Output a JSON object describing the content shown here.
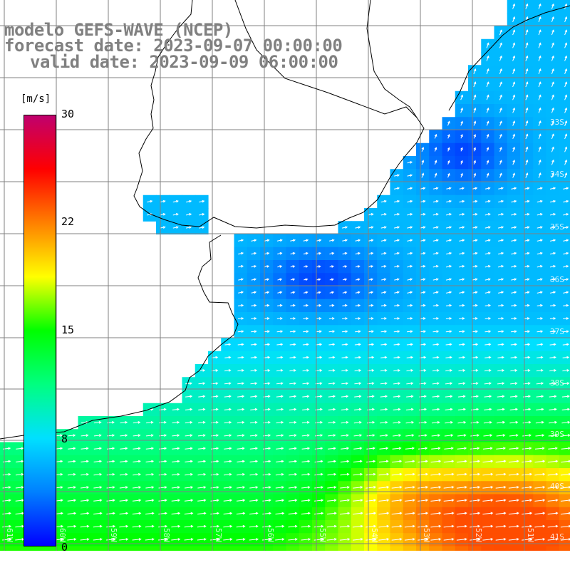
{
  "title": {
    "line1": "modelo GEFS-WAVE (NCEP)",
    "line2": "forecast date: 2023-09-07 00:00:00",
    "line3": "valid date: 2023-09-09 06:00:00"
  },
  "legend": {
    "unit": "[m/s]",
    "ticks": [
      {
        "label": "30",
        "value": 30
      },
      {
        "label": "22",
        "value": 22
      },
      {
        "label": "15",
        "value": 15
      },
      {
        "label": "8",
        "value": 8
      },
      {
        "label": "0",
        "value": 0
      }
    ],
    "colors": [
      "#0000ff",
      "#0080ff",
      "#00e0ff",
      "#00ff80",
      "#00ff00",
      "#ffff00",
      "#ff8000",
      "#ff0000",
      "#c0006e"
    ]
  },
  "lat_labels": [
    "33S",
    "34S",
    "35S",
    "36S",
    "37S",
    "38S",
    "39S",
    "40S",
    "41S"
  ],
  "lon_labels": [
    "61W",
    "60W",
    "59W",
    "58W",
    "57W",
    "56W",
    "55W",
    "54W",
    "53W",
    "52W",
    "51W"
  ],
  "colors": {
    "land": "#ffffff",
    "grid": "#808080",
    "coast": "#000000",
    "arrow": "#ffffff"
  }
}
